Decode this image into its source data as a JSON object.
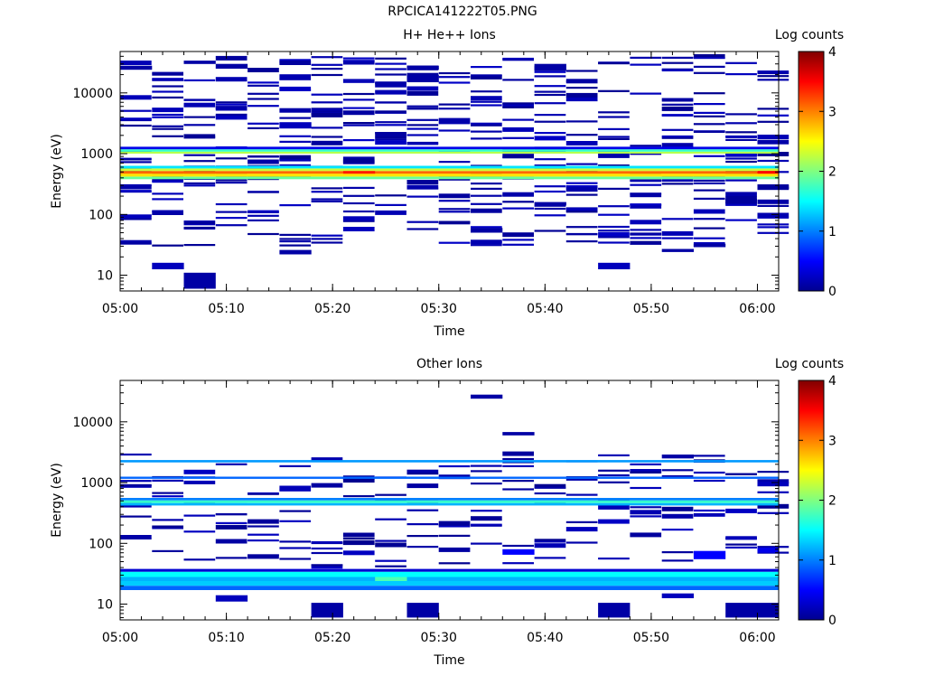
{
  "figure": {
    "title": "RPCICA141222T05.PNG"
  },
  "colors": {
    "colormap": [
      "#00008f",
      "#0000ff",
      "#0080ff",
      "#00ffff",
      "#80ff80",
      "#ffff00",
      "#ff8000",
      "#ff0000",
      "#800000"
    ],
    "background": "#ffffff",
    "axis": "#000000"
  },
  "chart_data": [
    {
      "type": "heatmap",
      "title": "H+ He++ Ions",
      "xlabel": "Time",
      "ylabel": "Energy (eV)",
      "yscale": "log",
      "ylim": [
        5.5,
        48000
      ],
      "xlim": [
        "05:00",
        "06:02"
      ],
      "xticks": [
        "05:00",
        "05:10",
        "05:20",
        "05:30",
        "05:40",
        "05:50",
        "06:00"
      ],
      "yticks": [
        "10",
        "100",
        "1000",
        "10000"
      ],
      "colorbar": {
        "label": "Log counts",
        "min": 0,
        "max": 4,
        "ticks": [
          "0",
          "1",
          "2",
          "3",
          "4"
        ]
      },
      "time_bins_start": [
        "05:00",
        "05:03",
        "05:06",
        "05:09",
        "05:12",
        "05:15",
        "05:18",
        "05:21",
        "05:24",
        "05:27",
        "05:30",
        "05:33",
        "05:36",
        "05:39",
        "05:42",
        "05:45",
        "05:48",
        "05:51",
        "05:54",
        "05:57",
        "06:00"
      ],
      "cells": [
        {
          "t0": "05:00",
          "t1": "06:02",
          "e0": 380,
          "e1": 420,
          "v": 1.9
        },
        {
          "t0": "05:00",
          "t1": "06:02",
          "e0": 420,
          "e1": 470,
          "v": 2.6
        },
        {
          "t0": "05:00",
          "t1": "06:02",
          "e0": 470,
          "e1": 520,
          "v": 3.1
        },
        {
          "t0": "05:00",
          "t1": "06:02",
          "e0": 520,
          "e1": 570,
          "v": 2.3
        },
        {
          "t0": "05:00",
          "t1": "06:02",
          "e0": 570,
          "e1": 630,
          "v": 1.4
        },
        {
          "t0": "05:00",
          "t1": "06:02",
          "e0": 1000,
          "e1": 1080,
          "v": 2.2
        },
        {
          "t0": "05:00",
          "t1": "06:02",
          "e0": 1080,
          "e1": 1180,
          "v": 1.7
        },
        {
          "t0": "05:00",
          "t1": "06:02",
          "e0": 1180,
          "e1": 1300,
          "v": 0.4
        },
        {
          "t0": "05:21",
          "t1": "05:24",
          "e0": 470,
          "e1": 520,
          "v": 3.4
        },
        {
          "t0": "06:00",
          "t1": "06:02",
          "e0": 470,
          "e1": 520,
          "v": 3.5
        },
        {
          "t0": "05:00",
          "t1": "05:03",
          "e0": 24000,
          "e1": 28000,
          "v": 0.1
        },
        {
          "t0": "05:06",
          "t1": "05:09",
          "e0": 30000,
          "e1": 34000,
          "v": 0.1
        },
        {
          "t0": "05:09",
          "t1": "05:12",
          "e0": 25000,
          "e1": 30000,
          "v": 0.1
        },
        {
          "t0": "05:15",
          "t1": "05:18",
          "e0": 2600,
          "e1": 3300,
          "v": 0.2
        },
        {
          "t0": "05:27",
          "t1": "05:30",
          "e0": 15000,
          "e1": 20000,
          "v": 0.1
        },
        {
          "t0": "05:27",
          "t1": "05:30",
          "e0": 24000,
          "e1": 28000,
          "v": 0.1
        },
        {
          "t0": "05:39",
          "t1": "05:42",
          "e0": 23000,
          "e1": 30000,
          "v": 0.1
        },
        {
          "t0": "05:03",
          "t1": "05:06",
          "e0": 12.5,
          "e1": 16,
          "v": 0.2
        },
        {
          "t0": "05:06",
          "t1": "05:09",
          "e0": 6,
          "e1": 11,
          "v": 0.1
        },
        {
          "t0": "05:15",
          "t1": "05:18",
          "e0": 22,
          "e1": 26,
          "v": 0.1
        },
        {
          "t0": "05:45",
          "t1": "05:48",
          "e0": 12.5,
          "e1": 16,
          "v": 0.2
        },
        {
          "t0": "05:51",
          "t1": "05:54",
          "e0": 24,
          "e1": 27,
          "v": 0.1
        },
        {
          "t0": "05:54",
          "t1": "05:57",
          "e0": 29,
          "e1": 33,
          "v": 0.1
        },
        {
          "t0": "05:33",
          "t1": "05:36",
          "e0": 50,
          "e1": 60,
          "v": 0.1
        },
        {
          "t0": "05:39",
          "t1": "05:42",
          "e0": 140,
          "e1": 160,
          "v": 0.1
        }
      ]
    },
    {
      "type": "heatmap",
      "title": "Other Ions",
      "xlabel": "Time",
      "ylabel": "Energy (eV)",
      "yscale": "log",
      "ylim": [
        5.5,
        48000
      ],
      "xlim": [
        "05:00",
        "06:02"
      ],
      "xticks": [
        "05:00",
        "05:10",
        "05:20",
        "05:30",
        "05:40",
        "05:50",
        "06:00"
      ],
      "yticks": [
        "10",
        "100",
        "1000",
        "10000"
      ],
      "colorbar": {
        "label": "Log counts",
        "min": 0,
        "max": 4,
        "ticks": [
          "0",
          "1",
          "2",
          "3",
          "4"
        ]
      },
      "time_bins_start": [
        "05:00",
        "05:03",
        "05:06",
        "05:09",
        "05:12",
        "05:15",
        "05:18",
        "05:21",
        "05:24",
        "05:27",
        "05:30",
        "05:33",
        "05:36",
        "05:39",
        "05:42",
        "05:45",
        "05:48",
        "05:51",
        "05:54",
        "05:57",
        "06:00"
      ],
      "cells": [
        {
          "t0": "05:00",
          "t1": "06:02",
          "e0": 2150,
          "e1": 2350,
          "v": 1.1
        },
        {
          "t0": "05:00",
          "t1": "06:02",
          "e0": 1150,
          "e1": 1250,
          "v": 0.9
        },
        {
          "t0": "05:00",
          "t1": "06:02",
          "e0": 420,
          "e1": 460,
          "v": 1.2
        },
        {
          "t0": "05:00",
          "t1": "06:02",
          "e0": 460,
          "e1": 510,
          "v": 1.7
        },
        {
          "t0": "05:00",
          "t1": "06:02",
          "e0": 510,
          "e1": 560,
          "v": 1.0
        },
        {
          "t0": "05:00",
          "t1": "06:02",
          "e0": 34,
          "e1": 38,
          "v": 0.3
        },
        {
          "t0": "05:00",
          "t1": "06:02",
          "e0": 28,
          "e1": 34,
          "v": 1.5
        },
        {
          "t0": "05:00",
          "t1": "06:02",
          "e0": 24,
          "e1": 28,
          "v": 1.2
        },
        {
          "t0": "05:00",
          "t1": "06:02",
          "e0": 20,
          "e1": 24,
          "v": 1.3
        },
        {
          "t0": "05:00",
          "t1": "06:02",
          "e0": 17,
          "e1": 20,
          "v": 0.9
        },
        {
          "t0": "05:24",
          "t1": "05:27",
          "e0": 24,
          "e1": 28,
          "v": 1.8
        },
        {
          "t0": "05:33",
          "t1": "05:36",
          "e0": 24000,
          "e1": 28000,
          "v": 0.1
        },
        {
          "t0": "05:36",
          "t1": "05:39",
          "e0": 6000,
          "e1": 6800,
          "v": 0.1
        },
        {
          "t0": "05:51",
          "t1": "05:54",
          "e0": 2500,
          "e1": 2900,
          "v": 0.1
        },
        {
          "t0": "05:36",
          "t1": "05:39",
          "e0": 65,
          "e1": 80,
          "v": 0.5
        },
        {
          "t0": "05:54",
          "t1": "05:57",
          "e0": 55,
          "e1": 75,
          "v": 0.5
        },
        {
          "t0": "06:00",
          "t1": "06:02",
          "e0": 70,
          "e1": 85,
          "v": 0.4
        },
        {
          "t0": "05:09",
          "t1": "05:12",
          "e0": 11,
          "e1": 14,
          "v": 0.2
        },
        {
          "t0": "05:18",
          "t1": "05:21",
          "e0": 6,
          "e1": 10.5,
          "v": 0.1
        },
        {
          "t0": "05:27",
          "t1": "05:30",
          "e0": 6,
          "e1": 10.5,
          "v": 0.1
        },
        {
          "t0": "05:45",
          "t1": "05:48",
          "e0": 6,
          "e1": 10.5,
          "v": 0.1
        },
        {
          "t0": "05:51",
          "t1": "05:54",
          "e0": 12.5,
          "e1": 15,
          "v": 0.2
        },
        {
          "t0": "05:57",
          "t1": "06:02",
          "e0": 6,
          "e1": 10.5,
          "v": 0.1
        }
      ]
    }
  ]
}
